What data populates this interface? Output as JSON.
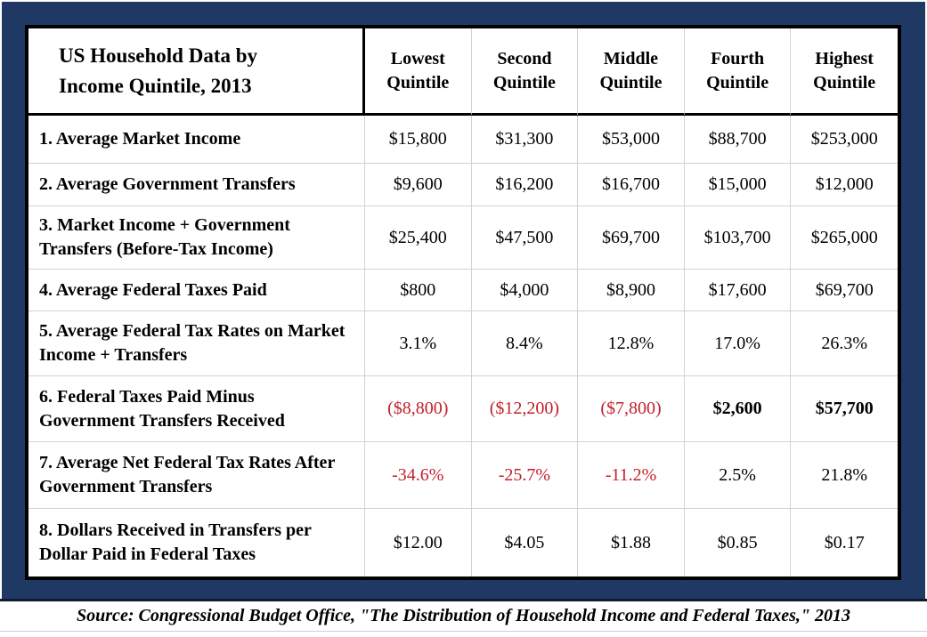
{
  "colors": {
    "background_navy": "#1F3864",
    "table_border_black": "#000000",
    "grid_line_gray": "#D2D2D2",
    "negative_red": "#C1212B",
    "cell_background": "#FFFFFF"
  },
  "chart_data": {
    "type": "table",
    "title": "US Household Data by\nIncome Quintile, 2013",
    "columns": [
      "Lowest Quintile",
      "Second Quintile",
      "Middle Quintile",
      "Fourth Quintile",
      "Highest Quintile"
    ],
    "rows": [
      {
        "label": "1. Average Market Income",
        "values": [
          "$15,800",
          "$31,300",
          "$53,000",
          "$88,700",
          "$253,000"
        ],
        "value_styles": [
          "normal",
          "normal",
          "normal",
          "normal",
          "normal"
        ]
      },
      {
        "label": "2. Average Government Transfers",
        "values": [
          "$9,600",
          "$16,200",
          "$16,700",
          "$15,000",
          "$12,000"
        ],
        "value_styles": [
          "normal",
          "normal",
          "normal",
          "normal",
          "normal"
        ]
      },
      {
        "label": "3. Market Income + Government Transfers (Before-Tax Income)",
        "values": [
          "$25,400",
          "$47,500",
          "$69,700",
          "$103,700",
          "$265,000"
        ],
        "value_styles": [
          "normal",
          "normal",
          "normal",
          "normal",
          "normal"
        ]
      },
      {
        "label": "4. Average Federal Taxes Paid",
        "values": [
          "$800",
          "$4,000",
          "$8,900",
          "$17,600",
          "$69,700"
        ],
        "value_styles": [
          "normal",
          "normal",
          "normal",
          "normal",
          "normal"
        ]
      },
      {
        "label": "5. Average Federal Tax Rates on Market Income + Transfers",
        "values": [
          "3.1%",
          "8.4%",
          "12.8%",
          "17.0%",
          "26.3%"
        ],
        "value_styles": [
          "normal",
          "normal",
          "normal",
          "normal",
          "normal"
        ]
      },
      {
        "label": "6. Federal Taxes Paid Minus Government Transfers Received",
        "values": [
          "($8,800)",
          "($12,200)",
          "($7,800)",
          "$2,600",
          "$57,700"
        ],
        "value_styles": [
          "red",
          "red",
          "red",
          "bold",
          "bold"
        ]
      },
      {
        "label": "7. Average Net Federal Tax Rates After Government Transfers",
        "values": [
          "-34.6%",
          "-25.7%",
          "-11.2%",
          "2.5%",
          "21.8%"
        ],
        "value_styles": [
          "red",
          "red",
          "red",
          "normal",
          "normal"
        ]
      },
      {
        "label": "8. Dollars Received in Transfers per Dollar Paid in Federal Taxes",
        "values": [
          "$12.00",
          "$4.05",
          "$1.88",
          "$0.85",
          "$0.17"
        ],
        "value_styles": [
          "normal",
          "normal",
          "normal",
          "normal",
          "normal"
        ]
      }
    ],
    "source": "Source: Congressional Budget Office, \"The Distribution of Household Income and Federal Taxes,\" 2013"
  }
}
